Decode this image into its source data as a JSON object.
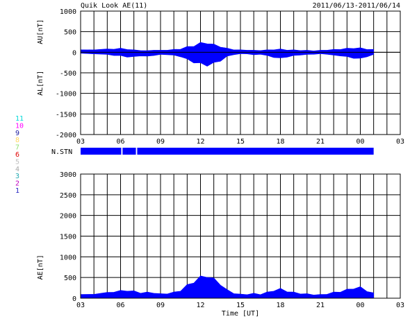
{
  "header": {
    "title": "Quik Look AE(11)",
    "date_range": "2011/06/13-2011/06/14"
  },
  "legend": {
    "entries": [
      {
        "label": "11",
        "color": "#00d8d8"
      },
      {
        "label": "10",
        "color": "#ff00ff"
      },
      {
        "label": "9",
        "color": "#1a1aa0"
      },
      {
        "label": "8",
        "color": "#ffd860"
      },
      {
        "label": "7",
        "color": "#90e070"
      },
      {
        "label": "6",
        "color": "#e00000"
      },
      {
        "label": "5",
        "color": "#c0c0c0"
      },
      {
        "label": "4",
        "color": "#a8a8a8"
      },
      {
        "label": "3",
        "color": "#20a8b0"
      },
      {
        "label": "2",
        "color": "#c000c0"
      },
      {
        "label": "1",
        "color": "#2020c0"
      }
    ]
  },
  "chart_data": [
    {
      "type": "area",
      "name": "AU/AL",
      "ylabel_upper": "AU[nT]",
      "ylabel_lower": "AL[nT]",
      "xlabel": "",
      "x_ticks": [
        "03",
        "06",
        "09",
        "12",
        "15",
        "18",
        "21",
        "00",
        "03"
      ],
      "y_ticks": [
        "1000",
        "500",
        "0",
        "-500",
        "-1000",
        "-1500",
        "-2000"
      ],
      "ylim": [
        -2000,
        1000
      ],
      "xlim_hours": [
        3,
        27
      ],
      "grid": true,
      "color": "#0000ff",
      "x": [
        3,
        4,
        5,
        5.5,
        6,
        6.5,
        7,
        7.5,
        8,
        8.5,
        9,
        9.5,
        10,
        10.5,
        11,
        11.5,
        12,
        12.5,
        13,
        13.5,
        14,
        14.5,
        15,
        15.5,
        16,
        16.5,
        17,
        17.5,
        18,
        18.5,
        19,
        19.5,
        20,
        20.5,
        21,
        21.5,
        22,
        22.5,
        23,
        23.5,
        24,
        24.5,
        25
      ],
      "au": [
        60,
        70,
        80,
        90,
        100,
        80,
        60,
        50,
        40,
        60,
        50,
        60,
        70,
        90,
        140,
        170,
        240,
        250,
        200,
        150,
        100,
        70,
        60,
        60,
        50,
        50,
        60,
        70,
        80,
        60,
        60,
        50,
        50,
        40,
        50,
        60,
        70,
        80,
        100,
        110,
        110,
        80,
        70
      ],
      "al": [
        -30,
        -40,
        -60,
        -80,
        -90,
        -120,
        -120,
        -90,
        -110,
        -80,
        -60,
        -60,
        -80,
        -110,
        -190,
        -260,
        -300,
        -340,
        -290,
        -220,
        -110,
        -60,
        -40,
        -40,
        -70,
        -50,
        -90,
        -130,
        -160,
        -120,
        -90,
        -70,
        -60,
        -50,
        -40,
        -50,
        -80,
        -90,
        -120,
        -150,
        -170,
        -110,
        -60
      ]
    },
    {
      "type": "bar",
      "name": "N.STN",
      "ylabel": "N.STN",
      "color": "#0000ff",
      "segments": [
        {
          "start": 3,
          "end": 6.05
        },
        {
          "start": 6.15,
          "end": 7.15
        },
        {
          "start": 7.25,
          "end": 25
        }
      ]
    },
    {
      "type": "area",
      "name": "AE",
      "ylabel": "AE[nT]",
      "xlabel": "Time [UT]",
      "x_ticks": [
        "03",
        "06",
        "09",
        "12",
        "15",
        "18",
        "21",
        "00",
        "03"
      ],
      "y_ticks": [
        "3000",
        "2500",
        "2000",
        "1500",
        "1000",
        "500",
        "0"
      ],
      "ylim": [
        0,
        3000
      ],
      "xlim_hours": [
        3,
        27
      ],
      "grid": true,
      "color": "#0000ff",
      "x": [
        3,
        4,
        5,
        5.5,
        6,
        6.5,
        7,
        7.5,
        8,
        8.5,
        9,
        9.5,
        10,
        10.5,
        11,
        11.5,
        12,
        12.5,
        13,
        13.5,
        14,
        14.5,
        15,
        15.5,
        16,
        16.5,
        17,
        17.5,
        18,
        18.5,
        19,
        19.5,
        20,
        20.5,
        21,
        21.5,
        22,
        22.5,
        23,
        23.5,
        24,
        24.5,
        25
      ],
      "values": [
        90,
        110,
        140,
        170,
        190,
        200,
        180,
        140,
        150,
        140,
        110,
        120,
        150,
        200,
        330,
        430,
        540,
        590,
        490,
        370,
        210,
        130,
        100,
        100,
        120,
        100,
        150,
        200,
        240,
        180,
        150,
        120,
        110,
        90,
        90,
        110,
        150,
        170,
        220,
        260,
        280,
        190,
        130
      ]
    }
  ]
}
